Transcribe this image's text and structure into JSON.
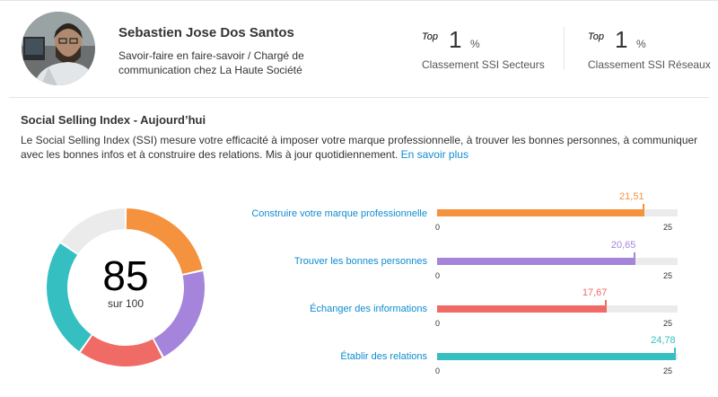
{
  "profile": {
    "name": "Sebastien Jose Dos Santos",
    "role_line1": "Savoir-faire en faire-savoir / Chargé de",
    "role_line2": "communication chez La Haute Société"
  },
  "rankings": [
    {
      "top_label": "Top",
      "value": "1",
      "unit": "%",
      "label": "Classement SSI Secteurs"
    },
    {
      "top_label": "Top",
      "value": "1",
      "unit": "%",
      "label": "Classement SSI Réseaux"
    }
  ],
  "ssi": {
    "title": "Social Selling Index - Aujourd’hui",
    "description": "Le Social Selling Index (SSI) mesure votre efficacité à imposer votre marque professionnelle, à trouver les bonnes personnes, à communiquer avec les bonnes infos et à construire des relations. Mis à jour quotidiennement.",
    "learn_more": "En savoir plus",
    "score": "85",
    "score_sub": "sur 100"
  },
  "chart_data": {
    "type": "bar",
    "categories": [
      "Construire votre marque professionnelle",
      "Trouver les bonnes personnes",
      "Échanger des informations",
      "Établir des relations"
    ],
    "values": [
      21.51,
      20.65,
      17.67,
      24.78
    ],
    "value_labels": [
      "21,51",
      "20,65",
      "17,67",
      "24,78"
    ],
    "xlim": [
      0,
      25
    ],
    "axis_min_label": "0",
    "axis_max_label": "25",
    "colors": [
      "#f4923e",
      "#a584db",
      "#f06b66",
      "#35bfc0"
    ]
  },
  "donut": {
    "total": 100,
    "remaining_color": "#ebebeb"
  }
}
